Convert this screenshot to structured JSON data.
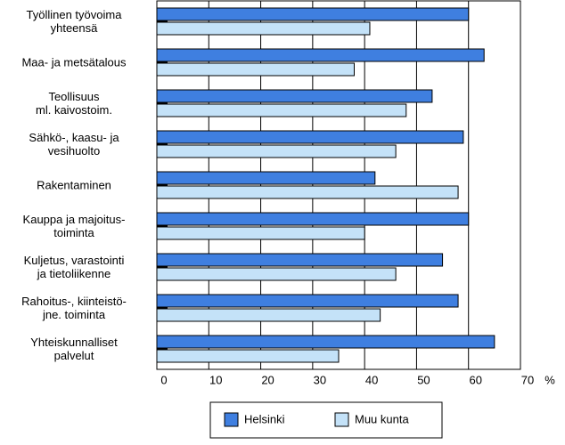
{
  "chart_data": {
    "type": "bar",
    "orientation": "horizontal",
    "categories": [
      "Työllinen työvoima\nyhteensä",
      "Maa- ja metsätalous",
      "Teollisuus\nml. kaivostoim.",
      "Sähkö-, kaasu- ja\nvesihuolto",
      "Rakentaminen",
      "Kauppa ja majoitus-\ntoiminta",
      "Kuljetus, varastointi\nja tietoliikenne",
      "Rahoitus-, kiinteistö-\njne. toiminta",
      "Yhteiskunnalliset\npalvelut"
    ],
    "series": [
      {
        "name": "Helsinki",
        "color": "#3f7fe0",
        "values": [
          60,
          63,
          53,
          59,
          42,
          60,
          55,
          58,
          65
        ]
      },
      {
        "name": "Muu kunta",
        "color": "#c4e2f8",
        "values": [
          41,
          38,
          48,
          46,
          58,
          40,
          46,
          43,
          35
        ]
      }
    ],
    "xlim": [
      0,
      70
    ],
    "xticks": [
      0,
      10,
      20,
      30,
      40,
      50,
      60,
      70
    ],
    "x_unit": "%",
    "grid": true,
    "legend": "bottom"
  }
}
